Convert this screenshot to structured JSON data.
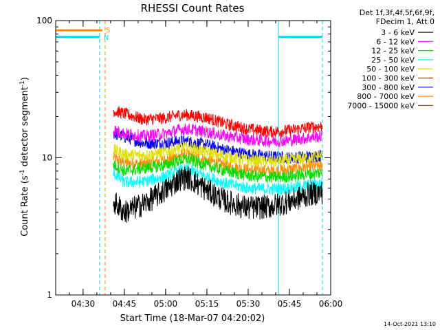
{
  "chart_data": {
    "type": "line",
    "title": "RHESSI Count Rates",
    "xlabel": "Start Time (18-Mar-07 04:20:02)",
    "ylabel_main": "Count Rate (s",
    "ylabel_exp1": "-1",
    "ylabel_mid": " detector segment",
    "ylabel_exp2": "-1",
    "ylabel_end": ")",
    "y_scale": "log",
    "ylim": [
      1,
      100
    ],
    "y_ticks": [
      {
        "value": 1,
        "label": "1"
      },
      {
        "value": 10,
        "label": "10"
      },
      {
        "value": 100,
        "label": "100"
      }
    ],
    "xlim": [
      "04:20:02",
      "06:00:00"
    ],
    "x_ticks": [
      {
        "t": "04:30",
        "label": "04:30"
      },
      {
        "t": "04:45",
        "label": "04:45"
      },
      {
        "t": "05:00",
        "label": "05:00"
      },
      {
        "t": "05:15",
        "label": "05:15"
      },
      {
        "t": "05:30",
        "label": "05:30"
      },
      {
        "t": "05:45",
        "label": "05:45"
      },
      {
        "t": "06:00",
        "label": "06:00"
      }
    ],
    "legend_position": "right",
    "legend_header": [
      "Det 1f,3f,4f,5f,6f,9f,",
      "FDecim 1, Att 0"
    ],
    "series": [
      {
        "name": "3 - 6 keV",
        "color": "#000000",
        "values": [
          [
            "04:41",
            4.8
          ],
          [
            "04:45",
            4.0
          ],
          [
            "04:52",
            4.6
          ],
          [
            "05:00",
            5.8
          ],
          [
            "05:05",
            7.0
          ],
          [
            "05:08",
            7.2
          ],
          [
            "05:15",
            5.8
          ],
          [
            "05:22",
            4.8
          ],
          [
            "05:30",
            4.3
          ],
          [
            "05:38",
            4.4
          ],
          [
            "05:45",
            4.8
          ],
          [
            "05:52",
            5.4
          ],
          [
            "05:57",
            5.6
          ]
        ]
      },
      {
        "name": "6 - 12 keV",
        "color": "#ff00ff",
        "values": [
          [
            "04:41",
            16.0
          ],
          [
            "04:45",
            15.0
          ],
          [
            "04:52",
            14.4
          ],
          [
            "05:00",
            15.0
          ],
          [
            "05:05",
            16.0
          ],
          [
            "05:08",
            16.2
          ],
          [
            "05:15",
            15.4
          ],
          [
            "05:22",
            14.4
          ],
          [
            "05:30",
            13.6
          ],
          [
            "05:38",
            13.2
          ],
          [
            "05:45",
            13.4
          ],
          [
            "05:52",
            14.0
          ],
          [
            "05:57",
            14.4
          ]
        ]
      },
      {
        "name": "12 - 25 keV",
        "color": "#00e000",
        "values": [
          [
            "04:41",
            9.0
          ],
          [
            "04:45",
            8.0
          ],
          [
            "04:52",
            8.4
          ],
          [
            "05:00",
            8.8
          ],
          [
            "05:05",
            9.6
          ],
          [
            "05:08",
            9.8
          ],
          [
            "05:15",
            8.8
          ],
          [
            "05:22",
            8.0
          ],
          [
            "05:30",
            7.4
          ],
          [
            "05:38",
            7.2
          ],
          [
            "05:45",
            7.3
          ],
          [
            "05:52",
            7.6
          ],
          [
            "05:57",
            7.8
          ]
        ]
      },
      {
        "name": "25 - 50 keV",
        "color": "#00ffff",
        "values": [
          [
            "04:41",
            7.8
          ],
          [
            "04:45",
            6.6
          ],
          [
            "04:52",
            6.7
          ],
          [
            "05:00",
            7.3
          ],
          [
            "05:05",
            8.0
          ],
          [
            "05:08",
            8.2
          ],
          [
            "05:15",
            7.3
          ],
          [
            "05:22",
            6.5
          ],
          [
            "05:30",
            6.0
          ],
          [
            "05:38",
            5.9
          ],
          [
            "05:45",
            6.0
          ],
          [
            "05:52",
            6.3
          ],
          [
            "05:57",
            6.5
          ]
        ]
      },
      {
        "name": "50 - 100 keV",
        "color": "#e0e000",
        "values": [
          [
            "04:41",
            11.5
          ],
          [
            "04:45",
            10.6
          ],
          [
            "04:52",
            10.4
          ],
          [
            "05:00",
            11.0
          ],
          [
            "05:05",
            11.8
          ],
          [
            "05:08",
            12.0
          ],
          [
            "05:15",
            11.0
          ],
          [
            "05:22",
            10.2
          ],
          [
            "05:30",
            9.6
          ],
          [
            "05:38",
            9.4
          ],
          [
            "05:45",
            9.6
          ],
          [
            "05:52",
            10.0
          ],
          [
            "05:57",
            10.4
          ]
        ]
      },
      {
        "name": "100 - 300 keV",
        "color": "#ff0000",
        "values": [
          [
            "04:41",
            22.0
          ],
          [
            "04:45",
            21.0
          ],
          [
            "04:52",
            19.0
          ],
          [
            "05:00",
            19.5
          ],
          [
            "05:05",
            20.5
          ],
          [
            "05:08",
            20.5
          ],
          [
            "05:15",
            19.6
          ],
          [
            "05:22",
            17.6
          ],
          [
            "05:30",
            16.2
          ],
          [
            "05:38",
            15.5
          ],
          [
            "05:45",
            15.8
          ],
          [
            "05:52",
            16.6
          ],
          [
            "05:57",
            17.0
          ]
        ]
      },
      {
        "name": "300 - 800 keV",
        "color": "#0000ff",
        "values": [
          [
            "04:41",
            15.0
          ],
          [
            "04:45",
            14.2
          ],
          [
            "04:52",
            12.8
          ],
          [
            "05:00",
            12.8
          ],
          [
            "05:05",
            13.2
          ],
          [
            "05:08",
            13.2
          ],
          [
            "05:15",
            12.4
          ],
          [
            "05:22",
            11.4
          ],
          [
            "05:30",
            10.6
          ],
          [
            "05:38",
            10.2
          ],
          [
            "05:45",
            10.0
          ],
          [
            "05:52",
            10.2
          ],
          [
            "05:57",
            10.4
          ]
        ]
      },
      {
        "name": "800 - 7000 keV",
        "color": "#ff8c00",
        "values": [
          [
            "04:41",
            10.0
          ],
          [
            "04:45",
            9.2
          ],
          [
            "04:52",
            9.0
          ],
          [
            "05:00",
            9.6
          ],
          [
            "05:05",
            10.4
          ],
          [
            "05:08",
            10.6
          ],
          [
            "05:15",
            9.6
          ],
          [
            "05:22",
            8.8
          ],
          [
            "05:30",
            8.2
          ],
          [
            "05:38",
            8.0
          ],
          [
            "05:45",
            8.2
          ],
          [
            "05:52",
            8.6
          ],
          [
            "05:57",
            8.8
          ]
        ]
      },
      {
        "name": "7000 - 15000 keV",
        "color": "#8b6508",
        "values": []
      }
    ],
    "attenuator_flag": {
      "label": "S",
      "color": "#ff8c00",
      "level": 85,
      "x_start": "04:20:02",
      "x_end": "04:37"
    },
    "saa_flag": {
      "label": "N",
      "color": "#00d8e8",
      "level": 76,
      "segments": [
        [
          "04:20:02",
          "04:36"
        ],
        [
          "05:41",
          "05:57"
        ]
      ]
    },
    "vertical_markers": [
      {
        "t": "04:36",
        "style": "dashed",
        "color": "#00d8e8"
      },
      {
        "t": "04:38",
        "style": "dashed",
        "color": "#ff8c00"
      },
      {
        "t": "05:41",
        "style": "solid",
        "color": "#00d8e8"
      },
      {
        "t": "05:57",
        "style": "dashed",
        "color": "#00d8e8"
      }
    ]
  },
  "footer": {
    "timestamp": "14-Oct-2021 13:10"
  }
}
